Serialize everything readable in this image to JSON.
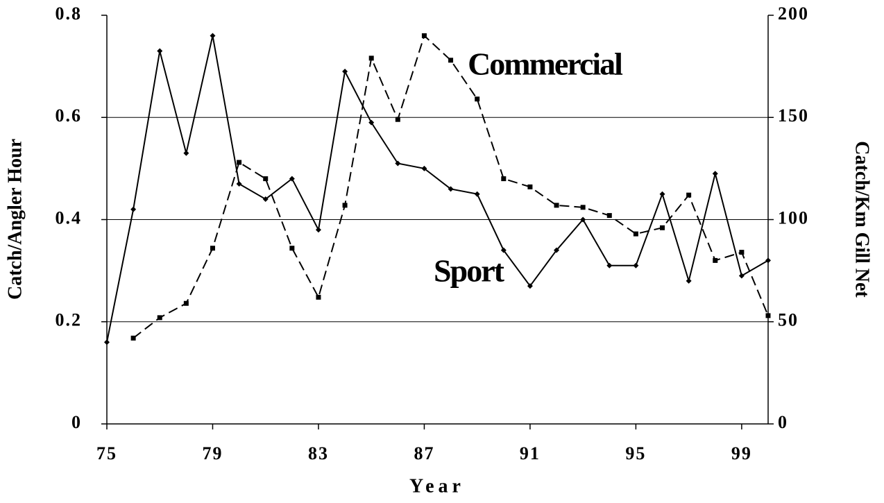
{
  "chart_data": {
    "type": "line",
    "x": [
      75,
      76,
      77,
      78,
      79,
      80,
      81,
      82,
      83,
      84,
      85,
      86,
      87,
      88,
      89,
      90,
      91,
      92,
      93,
      94,
      95,
      96,
      97,
      98,
      99,
      100
    ],
    "series": [
      {
        "name": "Sport",
        "color": "#000000",
        "dash": false,
        "marker": "diamond",
        "values": [
          0.16,
          0.42,
          0.73,
          0.53,
          0.76,
          0.47,
          0.44,
          0.48,
          0.38,
          0.69,
          0.59,
          0.51,
          0.5,
          0.46,
          0.45,
          0.34,
          0.27,
          0.34,
          0.4,
          0.31,
          0.31,
          0.45,
          0.28,
          0.49,
          0.29,
          0.32
        ]
      },
      {
        "name": "Commercial",
        "color": "#000000",
        "dash": true,
        "marker": "square",
        "axis": "y2",
        "values": [
          null,
          42,
          52,
          59,
          86,
          128,
          120,
          86,
          62,
          107,
          179,
          149,
          190,
          178,
          159,
          120,
          116,
          107,
          106,
          102,
          93,
          96,
          112,
          80,
          84,
          53
        ]
      }
    ],
    "xlabel": "Year",
    "ylabel": "Catch/Angler Hour",
    "y2label": "Catch/Km Gill Net",
    "xlim": [
      75,
      100
    ],
    "xticks": [
      75,
      79,
      83,
      87,
      91,
      95,
      99
    ],
    "ylim": [
      0,
      0.8
    ],
    "yticks": [
      0,
      0.2,
      0.4,
      0.6,
      0.8
    ],
    "y2lim": [
      0,
      200
    ],
    "y2ticks": [
      0,
      50,
      100,
      150,
      200
    ],
    "grid": true,
    "annotations": [
      {
        "text": "Commercial",
        "series": 1
      },
      {
        "text": "Sport",
        "series": 0
      }
    ]
  }
}
